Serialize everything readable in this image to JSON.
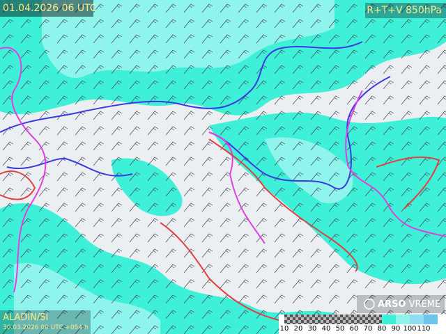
{
  "header": {
    "valid_time": "01.04.2026 06 UTC",
    "product": "R+T+V 850hPa"
  },
  "footer": {
    "model": "ALADIN/SI",
    "run": "30.03.2026 00 UTC +054 h"
  },
  "logo": {
    "name": "ARSO",
    "suffix": "VREME"
  },
  "legend": {
    "labels": [
      "10",
      "20",
      "30",
      "40",
      "50",
      "60",
      "70",
      "80",
      "90",
      "100",
      "110"
    ]
  }
}
